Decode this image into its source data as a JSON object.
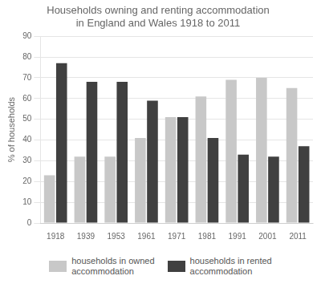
{
  "chart_data": {
    "type": "bar",
    "title": "Households owning and renting accommodation\nin England and Wales 1918 to 2011",
    "categories": [
      "1918",
      "1939",
      "1953",
      "1961",
      "1971",
      "1981",
      "1991",
      "2001",
      "2011"
    ],
    "series": [
      {
        "name": "households in owned\naccommodation",
        "color": "#c8c8c8",
        "values": [
          23,
          32,
          32,
          41,
          51,
          61,
          69,
          70,
          65
        ]
      },
      {
        "name": "households in rented\naccommodation",
        "color": "#404040",
        "values": [
          77,
          68,
          68,
          59,
          51,
          41,
          33,
          32,
          37
        ]
      }
    ],
    "ylabel": "% of households",
    "ylim": [
      0,
      90
    ],
    "yticks": [
      0,
      10,
      20,
      30,
      40,
      50,
      60,
      70,
      80,
      90
    ],
    "grid": true,
    "legend": "bottom"
  }
}
